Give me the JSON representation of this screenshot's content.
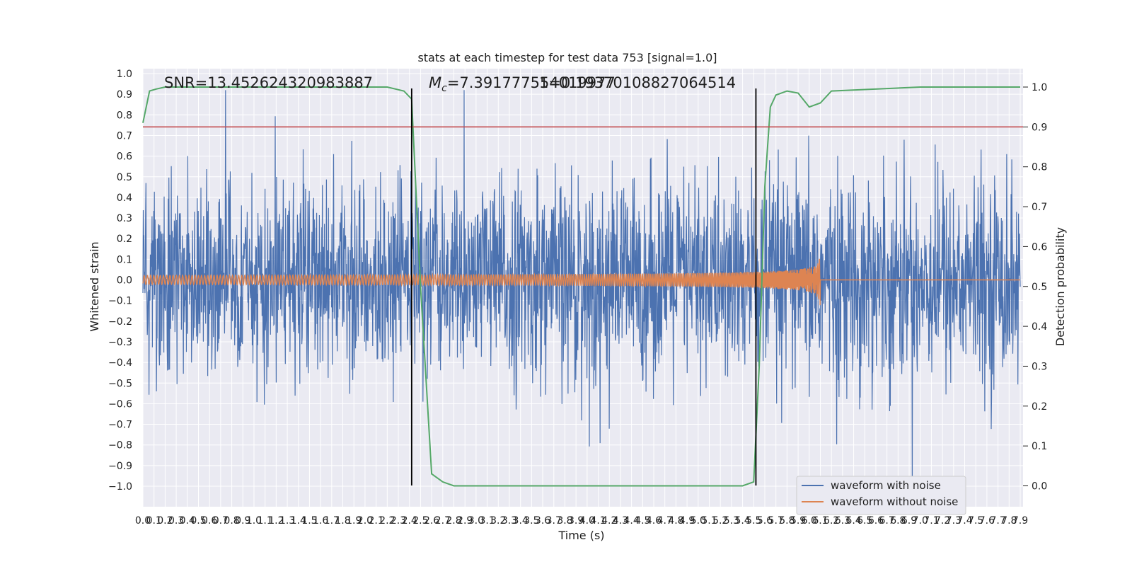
{
  "chart_data": {
    "type": "line",
    "title": "stats at each timestep for test data 753 [signal=1.0]",
    "xlabel": "Time (s)",
    "ylabel_left": "Whitened strain",
    "ylabel_right": "Detection probability",
    "xlim": [
      0.0,
      7.9
    ],
    "ylim_left": [
      -1.09,
      1.04
    ],
    "ylim_right": [
      -0.05,
      1.04
    ],
    "x_ticks": [
      "0.0",
      "0.1",
      "0.2",
      "0.3",
      "0.4",
      "0.5",
      "0.6",
      "0.7",
      "0.8",
      "0.9",
      "1.0",
      "1.1",
      "1.2",
      "1.3",
      "1.4",
      "1.5",
      "1.6",
      "1.7",
      "1.8",
      "1.9",
      "2.0",
      "2.1",
      "2.2",
      "2.3",
      "2.4",
      "2.5",
      "2.6",
      "2.7",
      "2.8",
      "2.9",
      "3.0",
      "3.1",
      "3.2",
      "3.3",
      "3.4",
      "3.5",
      "3.6",
      "3.7",
      "3.8",
      "3.9",
      "4.0",
      "4.1",
      "4.2",
      "4.3",
      "4.4",
      "4.5",
      "4.6",
      "4.7",
      "4.8",
      "4.9",
      "5.0",
      "5.1",
      "5.2",
      "5.3",
      "5.4",
      "5.5",
      "5.6",
      "5.7",
      "5.8",
      "5.9",
      "6.0",
      "6.1",
      "6.2",
      "6.3",
      "6.4",
      "6.5",
      "6.6",
      "6.7",
      "6.8",
      "6.9",
      "7.0",
      "7.1",
      "7.2",
      "7.3",
      "7.4",
      "7.5",
      "7.6",
      "7.7",
      "7.8",
      "7.9"
    ],
    "y_ticks_left": [
      "1.0",
      "0.9",
      "0.8",
      "0.7",
      "0.6",
      "0.5",
      "0.4",
      "0.3",
      "0.2",
      "0.1",
      "0.0",
      "−0.1",
      "−0.2",
      "−0.3",
      "−0.4",
      "−0.5",
      "−0.6",
      "−0.7",
      "−0.8",
      "−0.9",
      "−1.0"
    ],
    "y_ticks_right": [
      "1.0",
      "0.9",
      "0.8",
      "0.7",
      "0.6",
      "0.5",
      "0.4",
      "0.3",
      "0.2",
      "0.1",
      "0.0"
    ],
    "annotations": {
      "snr": "SNR=13.452624320983887",
      "mc": "=7.391777554019977",
      "mc_symbol": "M",
      "mc_sub": "c",
      "overlap": "1=0.19370108827064514"
    },
    "threshold": 0.9,
    "event_lines_x": [
      2.42,
      5.52
    ],
    "merger_time": 6.1,
    "colors": {
      "noisy": "#4c72b0",
      "clean": "#dd8452",
      "probability": "#55a868",
      "threshold": "#c44e52",
      "event_line": "#000000",
      "plot_bg": "#eaeaf2",
      "grid": "#ffffff"
    },
    "series": [
      {
        "name": "waveform with noise",
        "color": "#4c72b0"
      },
      {
        "name": "waveform without noise",
        "color": "#dd8452"
      },
      {
        "color": "#55a868",
        "axis": "right",
        "x": [
          0.0,
          0.06,
          0.12,
          0.2,
          0.4,
          1.0,
          2.0,
          2.2,
          2.35,
          2.42,
          2.5,
          2.6,
          2.7,
          2.8,
          2.9,
          3.0,
          3.2,
          4.0,
          4.7,
          5.0,
          5.4,
          5.5,
          5.55,
          5.6,
          5.65,
          5.7,
          5.8,
          5.9,
          6.0,
          6.1,
          6.2,
          7.0,
          7.9
        ],
        "y": [
          0.91,
          0.99,
          0.995,
          1.0,
          1.0,
          1.0,
          1.0,
          1.0,
          0.99,
          0.97,
          0.5,
          0.03,
          0.01,
          0.0,
          0.0,
          0.0,
          0.0,
          0.0,
          0.0,
          0.0,
          0.0,
          0.01,
          0.3,
          0.75,
          0.95,
          0.98,
          0.99,
          0.985,
          0.95,
          0.96,
          0.99,
          1.0,
          1.0
        ]
      }
    ],
    "legend": {
      "position": "lower-right",
      "entries": [
        "waveform with noise",
        "waveform without noise"
      ]
    }
  }
}
